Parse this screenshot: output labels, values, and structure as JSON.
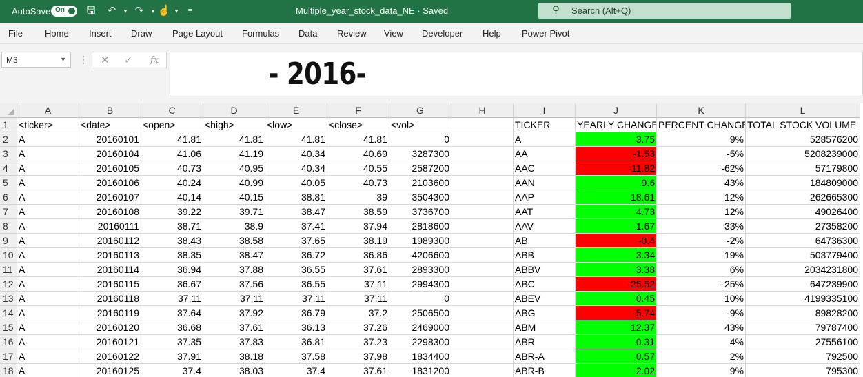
{
  "titlebar": {
    "autosave_label": "AutoSave",
    "autosave_state": "On",
    "file_title": "Multiple_year_stock_data_NE · Saved",
    "search_placeholder": "Search (Alt+Q)"
  },
  "menu": {
    "tabs": [
      "File",
      "Home",
      "Insert",
      "Draw",
      "Page Layout",
      "Formulas",
      "Data",
      "Review",
      "View",
      "Developer",
      "Help",
      "Power Pivot"
    ]
  },
  "formula_bar": {
    "name_box": "M3",
    "content": "- 2016-"
  },
  "colors": {
    "positive": "#00ff00",
    "negative": "#ff0000",
    "titlebar": "#217346"
  },
  "sheet": {
    "columns": [
      "A",
      "B",
      "C",
      "D",
      "E",
      "F",
      "G",
      "H",
      "I",
      "J",
      "K",
      "L"
    ],
    "row_numbers": [
      "1",
      "2",
      "3",
      "4",
      "5",
      "6",
      "7",
      "8",
      "9",
      "10",
      "11",
      "12",
      "13",
      "14",
      "15",
      "16",
      "17",
      "18"
    ],
    "header_row": [
      "<ticker>",
      "<date>",
      "<open>",
      "<high>",
      "<low>",
      "<close>",
      "<vol>",
      "",
      "TICKER",
      "YEARLY CHANGE",
      "PERCENT CHANGE",
      "TOTAL STOCK VOLUME"
    ],
    "rows": [
      [
        "A",
        "20160101",
        "41.81",
        "41.81",
        "41.81",
        "41.81",
        "0",
        "",
        "A",
        "3.75",
        "9%",
        "528576200"
      ],
      [
        "A",
        "20160104",
        "41.06",
        "41.19",
        "40.34",
        "40.69",
        "3287300",
        "",
        "AA",
        "-1.53",
        "-5%",
        "5208239000"
      ],
      [
        "A",
        "20160105",
        "40.73",
        "40.95",
        "40.34",
        "40.55",
        "2587200",
        "",
        "AAC",
        "-11.82",
        "-62%",
        "57179800"
      ],
      [
        "A",
        "20160106",
        "40.24",
        "40.99",
        "40.05",
        "40.73",
        "2103600",
        "",
        "AAN",
        "9.6",
        "43%",
        "184809000"
      ],
      [
        "A",
        "20160107",
        "40.14",
        "40.15",
        "38.81",
        "39",
        "3504300",
        "",
        "AAP",
        "18.61",
        "12%",
        "262665300"
      ],
      [
        "A",
        "20160108",
        "39.22",
        "39.71",
        "38.47",
        "38.59",
        "3736700",
        "",
        "AAT",
        "4.73",
        "12%",
        "49026400"
      ],
      [
        "A",
        "20160111",
        "38.71",
        "38.9",
        "37.41",
        "37.94",
        "2818600",
        "",
        "AAV",
        "1.67",
        "33%",
        "27358200"
      ],
      [
        "A",
        "20160112",
        "38.43",
        "38.58",
        "37.65",
        "38.19",
        "1989300",
        "",
        "AB",
        "-0.4",
        "-2%",
        "64736300"
      ],
      [
        "A",
        "20160113",
        "38.35",
        "38.47",
        "36.72",
        "36.86",
        "4206600",
        "",
        "ABB",
        "3.34",
        "19%",
        "503779400"
      ],
      [
        "A",
        "20160114",
        "36.94",
        "37.88",
        "36.55",
        "37.61",
        "2893300",
        "",
        "ABBV",
        "3.38",
        "6%",
        "2034231800"
      ],
      [
        "A",
        "20160115",
        "36.67",
        "37.56",
        "36.55",
        "37.11",
        "2994300",
        "",
        "ABC",
        "-25.52",
        "-25%",
        "647239900"
      ],
      [
        "A",
        "20160118",
        "37.11",
        "37.11",
        "37.11",
        "37.11",
        "0",
        "",
        "ABEV",
        "0.45",
        "10%",
        "4199335100"
      ],
      [
        "A",
        "20160119",
        "37.64",
        "37.92",
        "36.79",
        "37.2",
        "2506500",
        "",
        "ABG",
        "-5.74",
        "-9%",
        "89828200"
      ],
      [
        "A",
        "20160120",
        "36.68",
        "37.61",
        "36.13",
        "37.26",
        "2469000",
        "",
        "ABM",
        "12.37",
        "43%",
        "79787400"
      ],
      [
        "A",
        "20160121",
        "37.35",
        "37.83",
        "36.81",
        "37.23",
        "2298300",
        "",
        "ABR",
        "0.31",
        "4%",
        "27556100"
      ],
      [
        "A",
        "20160122",
        "37.91",
        "38.18",
        "37.58",
        "37.98",
        "1834400",
        "",
        "ABR-A",
        "0.57",
        "2%",
        "792500"
      ],
      [
        "A",
        "20160125",
        "37.4",
        "38.03",
        "37.4",
        "37.61",
        "1831200",
        "",
        "ABR-B",
        "2.02",
        "9%",
        "795300"
      ]
    ]
  }
}
